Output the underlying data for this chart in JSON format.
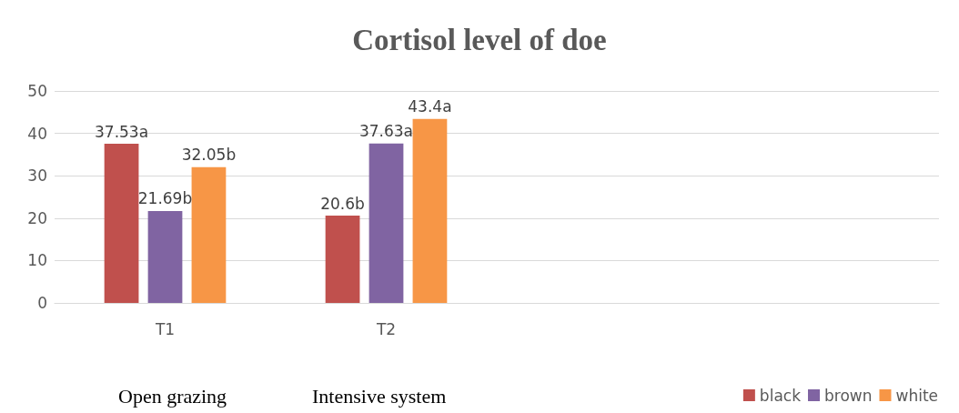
{
  "chart_data": {
    "type": "bar",
    "title": "Cortisol level of doe",
    "categories": [
      "T1",
      "T2",
      null,
      null
    ],
    "series": [
      {
        "name": "black",
        "color": "#c0504d",
        "values": [
          37.53,
          20.6,
          null,
          null
        ],
        "value_labels": [
          "37.53a",
          "20.6b",
          null,
          null
        ]
      },
      {
        "name": "brown",
        "color": "#8064a2",
        "values": [
          21.69,
          37.63,
          null,
          null
        ],
        "value_labels": [
          "21.69b",
          "37.63a",
          null,
          null
        ]
      },
      {
        "name": "white",
        "color": "#f79646",
        "values": [
          32.05,
          43.4,
          null,
          null
        ],
        "value_labels": [
          "32.05b",
          "43.4a",
          null,
          null
        ]
      }
    ],
    "ylim": [
      0,
      50
    ],
    "yticks": [
      0,
      10,
      20,
      30,
      40,
      50
    ],
    "grid": "y",
    "legend": "bottom right",
    "annotations": [
      "Open grazing",
      "Intensive system"
    ]
  }
}
